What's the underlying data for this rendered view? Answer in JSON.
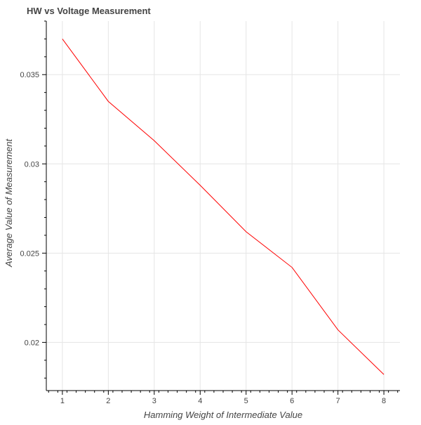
{
  "chart_data": {
    "type": "line",
    "title": "HW vs Voltage Measurement",
    "xlabel": "Hamming Weight of Intermediate Value",
    "ylabel": "Average Value of Measurement",
    "x": [
      1,
      2,
      3,
      4,
      5,
      6,
      7,
      8
    ],
    "series": [
      {
        "values": [
          0.037,
          0.0335,
          0.0313,
          0.0288,
          0.0262,
          0.0242,
          0.0207,
          0.0182
        ],
        "color": "#ff0000"
      }
    ],
    "xlim": [
      0.65,
      8.35
    ],
    "ylim": [
      0.0173,
      0.038
    ],
    "xticks": [
      1,
      2,
      3,
      4,
      5,
      6,
      7,
      8
    ],
    "xtick_labels": [
      "1",
      "2",
      "3",
      "4",
      "5",
      "6",
      "7",
      "8"
    ],
    "yticks": [
      0.02,
      0.025,
      0.03,
      0.035
    ],
    "ytick_labels": [
      "0.02",
      "0.025",
      "0.03",
      "0.035"
    ],
    "grid": true,
    "legend": "none"
  }
}
